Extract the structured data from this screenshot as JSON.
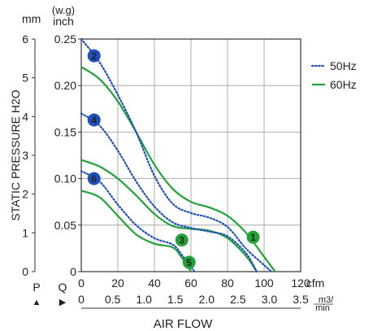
{
  "chart_data": {
    "type": "line",
    "title": "",
    "xlabel": "AIR FLOW",
    "ylabel": "STATIC PRESSURE H2O",
    "x_unit_primary": "cfm",
    "x_unit_secondary": "m3/min",
    "y_unit_primary": "(w.g) inch",
    "y_unit_secondary": "mm",
    "y_header_left": "mm",
    "y_header_right_line1": "(w.g)",
    "y_header_right_line2": "inch",
    "p_label": "P",
    "q_label": "Q",
    "p_arrow": "▲",
    "q_arrow": "▶",
    "xlim": [
      0,
      120
    ],
    "ylim": [
      0,
      0.25
    ],
    "x_ticks": [
      "0",
      "20",
      "40",
      "60",
      "80",
      "100",
      "120"
    ],
    "x_ticks_secondary": [
      "0",
      "0.5",
      "1.0",
      "1.5",
      "2.0",
      "2.5",
      "3.0",
      "3.5"
    ],
    "y_ticks": [
      "0",
      "0.05",
      "0.10",
      "0.15",
      "0.20",
      "0.25"
    ],
    "y_ticks_mm": [
      "0",
      "1",
      "2",
      "3",
      "4",
      "5",
      "6"
    ],
    "grid": true,
    "legend": {
      "placement": "right",
      "entries": [
        {
          "name": "50Hz",
          "style": "dotted",
          "color": "#1f4fbf"
        },
        {
          "name": "60Hz",
          "style": "solid",
          "color": "#22a33a"
        }
      ]
    },
    "colors": {
      "hz50": "#1f4fbf",
      "hz60": "#22a33a"
    },
    "series": [
      {
        "id": "1",
        "group": "60Hz",
        "marker": "1",
        "marker_at": [
          94,
          0.037
        ],
        "points": [
          [
            0,
            0.22
          ],
          [
            10,
            0.207
          ],
          [
            20,
            0.183
          ],
          [
            30,
            0.15
          ],
          [
            40,
            0.115
          ],
          [
            50,
            0.089
          ],
          [
            60,
            0.075
          ],
          [
            70,
            0.069
          ],
          [
            80,
            0.06
          ],
          [
            90,
            0.042
          ],
          [
            100,
            0.016
          ],
          [
            106,
            0
          ]
        ]
      },
      {
        "id": "2",
        "group": "50Hz",
        "marker": "2",
        "marker_at": [
          7,
          0.232
        ],
        "points": [
          [
            0,
            0.25
          ],
          [
            10,
            0.225
          ],
          [
            20,
            0.19
          ],
          [
            30,
            0.15
          ],
          [
            40,
            0.103
          ],
          [
            50,
            0.073
          ],
          [
            60,
            0.063
          ],
          [
            70,
            0.058
          ],
          [
            80,
            0.048
          ],
          [
            90,
            0.025
          ],
          [
            100,
            0.007
          ],
          [
            104,
            0
          ]
        ]
      },
      {
        "id": "3",
        "group": "60Hz",
        "marker": "3",
        "marker_at": [
          55,
          0.034
        ],
        "points": [
          [
            0,
            0.12
          ],
          [
            10,
            0.113
          ],
          [
            20,
            0.1
          ],
          [
            30,
            0.082
          ],
          [
            40,
            0.062
          ],
          [
            50,
            0.049
          ],
          [
            60,
            0.046
          ],
          [
            70,
            0.044
          ],
          [
            80,
            0.036
          ],
          [
            90,
            0.017
          ],
          [
            96,
            0
          ]
        ]
      },
      {
        "id": "4",
        "group": "50Hz",
        "marker": "4",
        "marker_at": [
          7,
          0.163
        ],
        "points": [
          [
            0,
            0.17
          ],
          [
            10,
            0.157
          ],
          [
            20,
            0.13
          ],
          [
            30,
            0.097
          ],
          [
            40,
            0.07
          ],
          [
            50,
            0.053
          ],
          [
            60,
            0.047
          ],
          [
            70,
            0.043
          ],
          [
            80,
            0.038
          ],
          [
            90,
            0.02
          ],
          [
            96,
            0
          ]
        ]
      },
      {
        "id": "5",
        "group": "60Hz",
        "marker": "5",
        "marker_at": [
          59,
          0.01
        ],
        "points": [
          [
            0,
            0.087
          ],
          [
            10,
            0.08
          ],
          [
            20,
            0.06
          ],
          [
            30,
            0.04
          ],
          [
            40,
            0.03
          ],
          [
            50,
            0.026
          ],
          [
            55,
            0.015
          ],
          [
            60,
            0
          ]
        ]
      },
      {
        "id": "6",
        "group": "50Hz",
        "marker": "6",
        "marker_at": [
          7,
          0.1
        ],
        "points": [
          [
            0,
            0.108
          ],
          [
            10,
            0.097
          ],
          [
            20,
            0.072
          ],
          [
            30,
            0.05
          ],
          [
            40,
            0.036
          ],
          [
            50,
            0.029
          ],
          [
            55,
            0.018
          ],
          [
            62,
            0
          ]
        ]
      }
    ]
  }
}
